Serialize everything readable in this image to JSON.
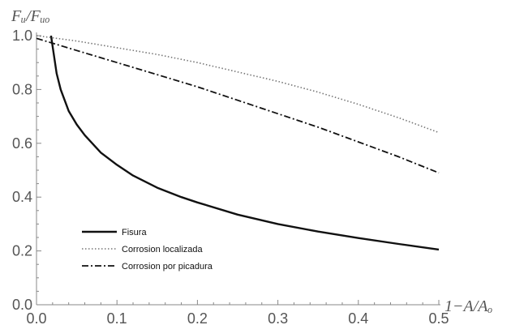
{
  "chart_data": {
    "type": "line",
    "xlabel": "1−A/Aₒ",
    "ylabel": "Fᵤ/Fᵤₒ",
    "xlim": [
      0.0,
      0.5
    ],
    "ylim": [
      0.0,
      1.0
    ],
    "x_ticks": [
      "0.0",
      "0.1",
      "0.2",
      "0.3",
      "0.4",
      "0.5"
    ],
    "y_ticks": [
      "0.0",
      "0.2",
      "0.4",
      "0.6",
      "0.8",
      "1.0"
    ],
    "grid": false,
    "legend_position": "bottom-left",
    "series": [
      {
        "name": "Fisura",
        "style": "solid",
        "color": "#111111",
        "x": [
          0.018,
          0.025,
          0.03,
          0.04,
          0.05,
          0.06,
          0.08,
          0.1,
          0.12,
          0.15,
          0.18,
          0.2,
          0.25,
          0.3,
          0.35,
          0.4,
          0.45,
          0.5
        ],
        "y": [
          1.0,
          0.86,
          0.8,
          0.72,
          0.67,
          0.63,
          0.565,
          0.52,
          0.48,
          0.435,
          0.4,
          0.38,
          0.335,
          0.3,
          0.272,
          0.248,
          0.226,
          0.205
        ]
      },
      {
        "name": "Corrosion localizada",
        "style": "dotted",
        "color": "#777777",
        "x": [
          0.0,
          0.05,
          0.1,
          0.15,
          0.2,
          0.25,
          0.3,
          0.35,
          0.4,
          0.45,
          0.5
        ],
        "y": [
          1.0,
          0.98,
          0.955,
          0.93,
          0.9,
          0.865,
          0.83,
          0.79,
          0.745,
          0.695,
          0.64
        ]
      },
      {
        "name": "Corrosion por picadura",
        "style": "dashdot",
        "color": "#111111",
        "x": [
          0.0,
          0.05,
          0.1,
          0.15,
          0.2,
          0.25,
          0.3,
          0.35,
          0.4,
          0.45,
          0.5
        ],
        "y": [
          0.99,
          0.945,
          0.9,
          0.855,
          0.81,
          0.76,
          0.71,
          0.66,
          0.605,
          0.55,
          0.49
        ]
      }
    ]
  }
}
